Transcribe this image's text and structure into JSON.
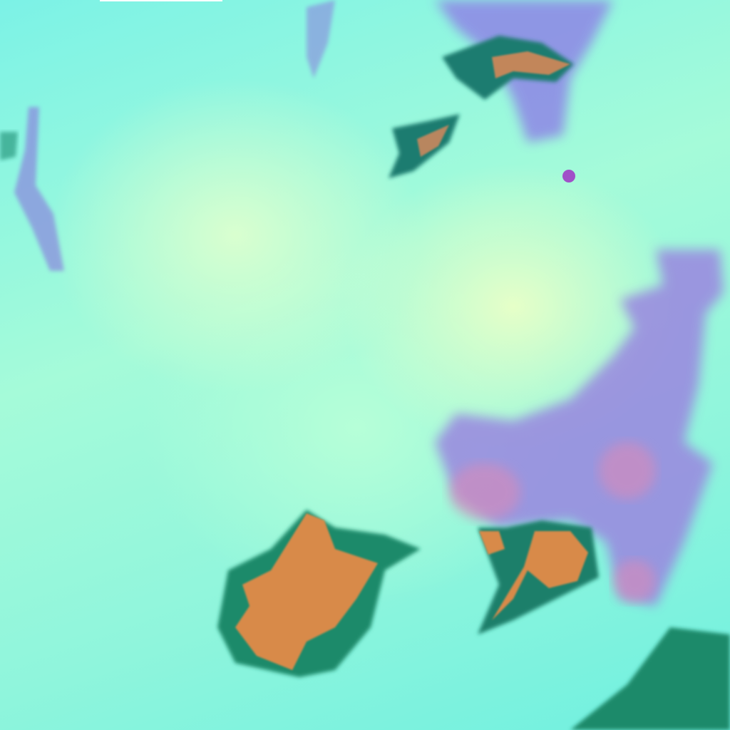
{
  "image": {
    "kind": "false-color satellite imagery",
    "colors": {
      "background_cyan": "#7ef5dc",
      "haze_yellow": "#e6ffc8",
      "cloud_purple": "#9a86e0",
      "cloud_pink": "#d98ab8",
      "land_orange": "#d88a4a",
      "vegetation_green": "#1e8a6a"
    }
  }
}
